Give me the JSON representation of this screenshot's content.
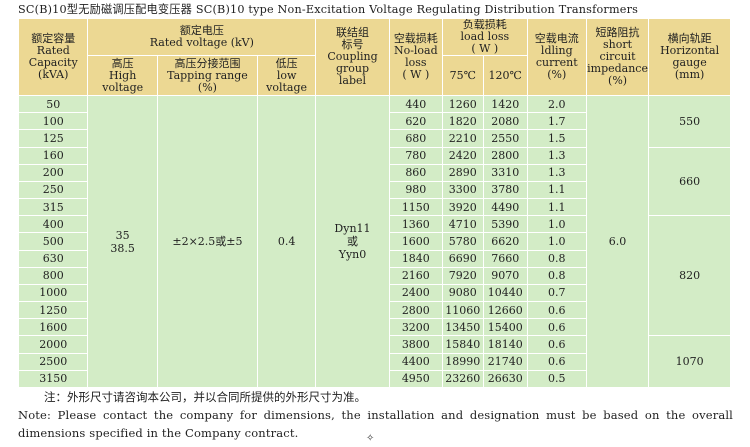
{
  "title": "SC(B)10型无励磁调压配电变压器 SC(B)10 type Non-Excitation Voltage Regulating Distribution Transformers",
  "header": {
    "rated_capacity": [
      "额定容量",
      "Rated",
      "Capacity",
      "(kVA)"
    ],
    "rated_voltage": [
      "额定电压",
      "Rated voltage (kV)"
    ],
    "high_voltage": [
      "高压",
      "High",
      "voltage"
    ],
    "tapping_range": [
      "高压分接范围",
      "Tapping range",
      "(%)"
    ],
    "low_voltage": [
      "低压",
      "low",
      "voltage"
    ],
    "coupling": [
      "联结组",
      "标号",
      "Coupling",
      "group",
      "label"
    ],
    "no_load_loss": [
      "空载损耗",
      "No-load",
      "loss",
      "( W )"
    ],
    "load_loss": [
      "负载损耗",
      "load loss",
      "( W )"
    ],
    "temp_75": "75℃",
    "temp_120": "120℃",
    "idling_current": [
      "空载电流",
      "ldling",
      "current",
      "(%)"
    ],
    "short_circuit": [
      "短路阻抗",
      "short",
      "circuit",
      "impedance",
      "(%)"
    ],
    "horizontal_gauge": [
      "横向轨距",
      "Horizontal",
      "gauge",
      "(mm)"
    ]
  },
  "rows": [
    {
      "capacity": "50",
      "no_load": "440",
      "load75": "1260",
      "load120": "1420",
      "idle": "2.0"
    },
    {
      "capacity": "100",
      "no_load": "620",
      "load75": "1820",
      "load120": "2080",
      "idle": "1.7"
    },
    {
      "capacity": "125",
      "no_load": "680",
      "load75": "2210",
      "load120": "2550",
      "idle": "1.5"
    },
    {
      "capacity": "160",
      "no_load": "780",
      "load75": "2420",
      "load120": "2800",
      "idle": "1.3"
    },
    {
      "capacity": "200",
      "no_load": "860",
      "load75": "2890",
      "load120": "3310",
      "idle": "1.3"
    },
    {
      "capacity": "250",
      "no_load": "980",
      "load75": "3300",
      "load120": "3780",
      "idle": "1.1"
    },
    {
      "capacity": "315",
      "no_load": "1150",
      "load75": "3920",
      "load120": "4490",
      "idle": "1.1"
    },
    {
      "capacity": "400",
      "no_load": "1360",
      "load75": "4710",
      "load120": "5390",
      "idle": "1.0"
    },
    {
      "capacity": "500",
      "no_load": "1600",
      "load75": "5780",
      "load120": "6620",
      "idle": "1.0"
    },
    {
      "capacity": "630",
      "no_load": "1840",
      "load75": "6690",
      "load120": "7660",
      "idle": "0.8"
    },
    {
      "capacity": "800",
      "no_load": "2160",
      "load75": "7920",
      "load120": "9070",
      "idle": "0.8"
    },
    {
      "capacity": "1000",
      "no_load": "2400",
      "load75": "9080",
      "load120": "10440",
      "idle": "0.7"
    },
    {
      "capacity": "1250",
      "no_load": "2800",
      "load75": "11060",
      "load120": "12660",
      "idle": "0.6"
    },
    {
      "capacity": "1600",
      "no_load": "3200",
      "load75": "13450",
      "load120": "15400",
      "idle": "0.6"
    },
    {
      "capacity": "2000",
      "no_load": "3800",
      "load75": "15840",
      "load120": "18140",
      "idle": "0.6"
    },
    {
      "capacity": "2500",
      "no_load": "4400",
      "load75": "18990",
      "load120": "21740",
      "idle": "0.6"
    },
    {
      "capacity": "3150",
      "no_load": "4950",
      "load75": "23260",
      "load120": "26630",
      "idle": "0.5"
    }
  ],
  "merged": {
    "high_voltage": [
      "35",
      "38.5"
    ],
    "tapping": "±2×2.5或±5",
    "low_voltage": "0.4",
    "coupling": [
      "Dyn11",
      "或",
      "Yyn0"
    ],
    "impedance": "6.0",
    "gauge": [
      {
        "value": "550",
        "rows": 3
      },
      {
        "value": "660",
        "rows": 4
      },
      {
        "value": "820",
        "rows": 7
      },
      {
        "value": "1070",
        "rows": 3
      }
    ]
  },
  "note_cn": "注：外形尺寸请咨询本公司，并以合同所提供的外形尺寸为准。",
  "note_en": "Note: Please contact the company for dimensions, the installation and designation must be based on the overall dimensions specified in the Company contract.",
  "cursor_glyph": "✧"
}
